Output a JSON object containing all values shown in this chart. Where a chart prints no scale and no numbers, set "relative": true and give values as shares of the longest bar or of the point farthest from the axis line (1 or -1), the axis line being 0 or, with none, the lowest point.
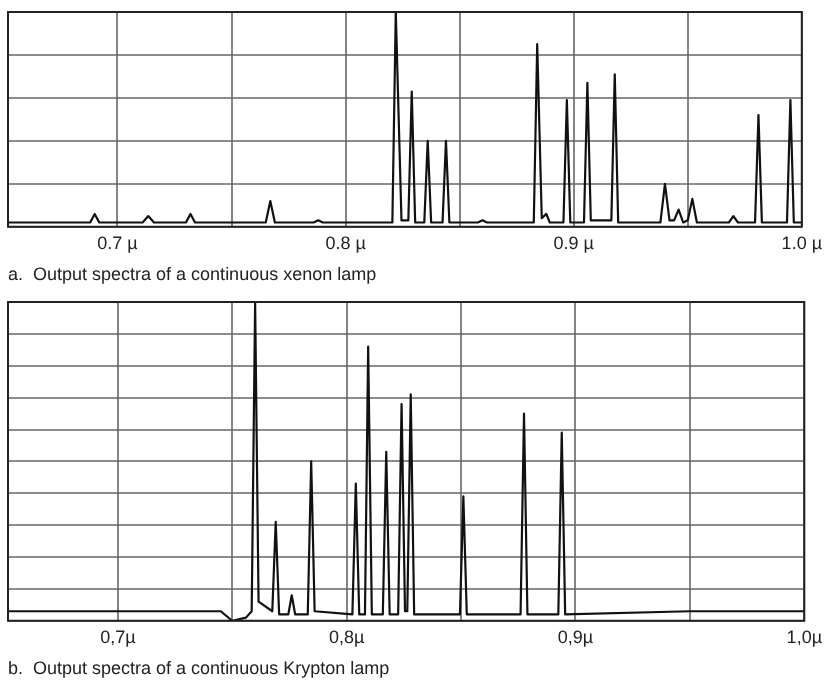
{
  "chart_data": [
    {
      "type": "line",
      "title": "a.  Output spectra of a continuous xenon lamp",
      "relative": true,
      "color": "#111111",
      "marker": "none",
      "line_style": "solid",
      "grid": true,
      "legend": false,
      "tick_labels": "x",
      "xlim": [
        0.652,
        1.0
      ],
      "xticks": [
        {
          "value": 0.7,
          "label": "0.7 µ"
        },
        {
          "value": 0.75,
          "label": null
        },
        {
          "value": 0.8,
          "label": "0.8 µ"
        },
        {
          "value": 0.85,
          "label": null
        },
        {
          "value": 0.9,
          "label": "0.9 µ"
        },
        {
          "value": 0.95,
          "label": null
        },
        {
          "value": 1.0,
          "label": "1.0 µ"
        }
      ],
      "x": [
        0.652,
        0.688,
        0.69,
        0.692,
        0.711,
        0.7135,
        0.716,
        0.73,
        0.732,
        0.734,
        0.765,
        0.767,
        0.769,
        0.786,
        0.788,
        0.79,
        0.8205,
        0.822,
        0.8245,
        0.8275,
        0.829,
        0.8305,
        0.8345,
        0.836,
        0.8375,
        0.8425,
        0.844,
        0.8455,
        0.858,
        0.86,
        0.862,
        0.8825,
        0.884,
        0.886,
        0.888,
        0.8895,
        0.8955,
        0.897,
        0.8985,
        0.9045,
        0.906,
        0.9075,
        0.9165,
        0.918,
        0.9195,
        0.938,
        0.94,
        0.942,
        0.944,
        0.946,
        0.948,
        0.95,
        0.952,
        0.954,
        0.968,
        0.97,
        0.972,
        0.9795,
        0.981,
        0.9825,
        0.9935,
        0.995,
        0.9965,
        1.0
      ],
      "values": [
        0.02,
        0.02,
        0.06,
        0.02,
        0.02,
        0.05,
        0.02,
        0.02,
        0.06,
        0.02,
        0.02,
        0.12,
        0.02,
        0.02,
        0.03,
        0.02,
        0.02,
        1,
        0.03,
        0.03,
        0.63,
        0.02,
        0.02,
        0.4,
        0.02,
        0.02,
        0.4,
        0.02,
        0.02,
        0.03,
        0.02,
        0.02,
        0.85,
        0.04,
        0.06,
        0.02,
        0.02,
        0.59,
        0.02,
        0.02,
        0.67,
        0.03,
        0.03,
        0.71,
        0.02,
        0.02,
        0.2,
        0.03,
        0.03,
        0.08,
        0.02,
        0.03,
        0.13,
        0.02,
        0.02,
        0.05,
        0.02,
        0.02,
        0.52,
        0.02,
        0.02,
        0.59,
        0.02,
        0.02
      ]
    },
    {
      "type": "line",
      "title": "b.  Output spectra of a continuous Krypton lamp",
      "relative": true,
      "color": "#111111",
      "marker": "none",
      "line_style": "solid",
      "grid": true,
      "legend": false,
      "tick_labels": "x",
      "xlim": [
        0.652,
        1.0
      ],
      "xticks": [
        {
          "value": 0.7,
          "label": "0,7µ"
        },
        {
          "value": 0.75,
          "label": null
        },
        {
          "value": 0.8,
          "label": "0,8µ"
        },
        {
          "value": 0.85,
          "label": null
        },
        {
          "value": 0.9,
          "label": "0,9µ"
        },
        {
          "value": 0.95,
          "label": null
        },
        {
          "value": 1.0,
          "label": "1,0µ"
        }
      ],
      "x": [
        0.652,
        0.7,
        0.745,
        0.75,
        0.756,
        0.7585,
        0.76,
        0.7615,
        0.7675,
        0.769,
        0.7705,
        0.7745,
        0.776,
        0.7775,
        0.783,
        0.7845,
        0.786,
        0.8025,
        0.804,
        0.8055,
        0.808,
        0.8094,
        0.811,
        0.8158,
        0.8173,
        0.8188,
        0.8225,
        0.824,
        0.8255,
        0.8265,
        0.828,
        0.8295,
        0.8495,
        0.851,
        0.8525,
        0.876,
        0.8775,
        0.879,
        0.8925,
        0.894,
        0.8955,
        0.95,
        1.0
      ],
      "values": [
        0.03,
        0.03,
        0.03,
        0,
        0.01,
        0.03,
        1,
        0.06,
        0.03,
        0.31,
        0.02,
        0.02,
        0.08,
        0.02,
        0.02,
        0.5,
        0.03,
        0.02,
        0.43,
        0.02,
        0.02,
        0.86,
        0.02,
        0.02,
        0.53,
        0.02,
        0.02,
        0.68,
        0.03,
        0.03,
        0.71,
        0.02,
        0.02,
        0.39,
        0.02,
        0.02,
        0.65,
        0.02,
        0.02,
        0.59,
        0.02,
        0.03,
        0.03
      ]
    }
  ]
}
